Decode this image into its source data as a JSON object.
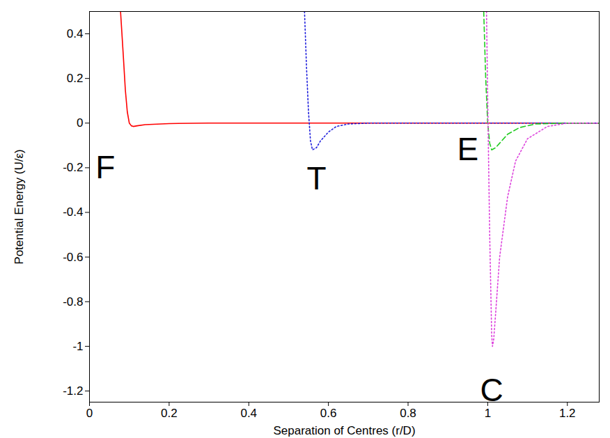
{
  "chart_data": {
    "type": "line",
    "x_label": "Separation of Centres (r/D)",
    "y_label": "Potential Energy (U/ε)",
    "xlim": [
      0,
      1.28
    ],
    "ylim": [
      -1.25,
      0.5
    ],
    "xticks": [
      0,
      0.2,
      0.4,
      0.6,
      0.8,
      1,
      1.2
    ],
    "yticks": [
      -1.2,
      -1,
      -0.8,
      -0.6,
      -0.4,
      -0.2,
      0,
      0.2,
      0.4
    ],
    "grid": false,
    "series": [
      {
        "name": "F",
        "color": "#ff0000",
        "line_style": "solid",
        "x": [
          0.078,
          0.085,
          0.09,
          0.095,
          0.1,
          0.105,
          0.11,
          0.12,
          0.14,
          0.2,
          0.3,
          1.28
        ],
        "values": [
          0.5,
          0.3,
          0.15,
          0.05,
          0.0,
          -0.012,
          -0.015,
          -0.012,
          -0.007,
          -0.002,
          0,
          0
        ]
      },
      {
        "name": "T",
        "color": "#2222dd",
        "line_style": "dotted",
        "x": [
          0.54,
          0.545,
          0.55,
          0.555,
          0.56,
          0.57,
          0.58,
          0.6,
          0.62,
          0.65,
          0.7,
          1.28
        ],
        "values": [
          0.5,
          0.25,
          0.05,
          -0.08,
          -0.12,
          -0.11,
          -0.08,
          -0.04,
          -0.015,
          -0.004,
          0,
          0
        ]
      },
      {
        "name": "E",
        "color": "#22cc22",
        "line_style": "dashed",
        "x": [
          0.99,
          0.995,
          1.0,
          1.005,
          1.01,
          1.02,
          1.03,
          1.05,
          1.08,
          1.12,
          1.2,
          1.28
        ],
        "values": [
          0.5,
          0.2,
          0,
          -0.09,
          -0.12,
          -0.11,
          -0.09,
          -0.05,
          -0.02,
          -0.004,
          0,
          0
        ]
      },
      {
        "name": "C",
        "color": "#dd44dd",
        "line_style": "dotted",
        "x": [
          0.997,
          1.0,
          1.005,
          1.01,
          1.012,
          1.015,
          1.02,
          1.03,
          1.05,
          1.07,
          1.1,
          1.15,
          1.2,
          1.28
        ],
        "values": [
          0.5,
          0.1,
          -0.5,
          -0.95,
          -1.0,
          -0.97,
          -0.85,
          -0.6,
          -0.33,
          -0.17,
          -0.07,
          -0.015,
          0,
          0
        ]
      }
    ],
    "annotations": [
      {
        "text": "F",
        "x": 0.04,
        "y": -0.2
      },
      {
        "text": "T",
        "x": 0.57,
        "y": -0.25
      },
      {
        "text": "E",
        "x": 0.95,
        "y": -0.12
      },
      {
        "text": "C",
        "x": 1.01,
        "y": -1.2
      }
    ]
  }
}
